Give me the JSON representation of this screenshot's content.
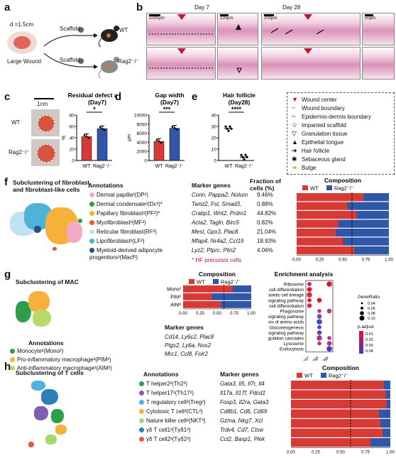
{
  "panels": {
    "a": "a",
    "b": "b",
    "c": "c",
    "d": "d",
    "e": "e",
    "f": "f",
    "g": "g",
    "h": "h"
  },
  "panel_a": {
    "diameter": "d =1.5cm",
    "wound": "Large Wound",
    "scaffold1": "Scaffold",
    "scaffold2": "Scaffold",
    "wt": "WT",
    "rag": "Rag2⁻/⁻"
  },
  "panel_b": {
    "day7": "Day 7",
    "day28": "Day 28",
    "scale1": "1000μm",
    "scale2": "100μm",
    "scale3": "200μm",
    "scale4": "50μm"
  },
  "panel_c": {
    "scale": "1cm",
    "wt": "WT",
    "rag": "Rag2⁻/⁻"
  },
  "charts": {
    "c": {
      "type": "bar",
      "title": "Residual defect area",
      "subtitle": "(Day7)",
      "ylabel": "%",
      "categories": [
        "WT",
        "Rag2⁻/⁻"
      ],
      "values": [
        42,
        56
      ],
      "yticks": [
        "0",
        "20",
        "40",
        "60",
        "80"
      ],
      "ylim": [
        0,
        80
      ],
      "sig": "*",
      "colors": [
        "#d73a35",
        "#3056a8"
      ]
    },
    "d": {
      "type": "bar",
      "title": "Gap width",
      "subtitle": "(Day7)",
      "ylabel": "μm",
      "categories": [
        "WT",
        "Rag2⁻/⁻"
      ],
      "values": [
        4200,
        7100
      ],
      "yticks": [
        "0",
        "2000",
        "4000",
        "6000",
        "8000",
        "10000"
      ],
      "ylim": [
        0,
        10000
      ],
      "sig": "***",
      "colors": [
        "#d73a35",
        "#3056a8"
      ]
    },
    "e": {
      "type": "scatter",
      "title": "Hair follicle",
      "subtitle": "(Day28)",
      "ylabel": "",
      "categories": [
        "WT",
        "Rag2⁻/⁻"
      ],
      "values": [
        28,
        3
      ],
      "yticks": [
        "0",
        "10",
        "20",
        "30",
        "40"
      ],
      "ylim": [
        0,
        40
      ],
      "sig": "****"
    }
  },
  "legend_b": [
    {
      "icon": "red-arrowhead",
      "label": "Wound center"
    },
    {
      "icon": "dotted-line",
      "label": "Wound boundary"
    },
    {
      "icon": "dashed-line",
      "label": "Epidermis-dermis boundary"
    },
    {
      "icon": "star-outline",
      "label": "Impanted scaffold"
    },
    {
      "icon": "triangle-down-outline",
      "label": "Granulation tissue"
    },
    {
      "icon": "triangle-up-filled",
      "label": "Epithelial tongue"
    },
    {
      "icon": "black-arrow",
      "label": "Hair follicle"
    },
    {
      "icon": "asterisk",
      "label": "Sebaceous gland"
    },
    {
      "icon": "orange-arrow",
      "label": "Bulge"
    }
  ],
  "panel_f": {
    "title1": "Subclustering of fibroblast",
    "title2": "and fibroblast-like cells",
    "annot_title": "Annotations",
    "marker_title": "Marker genes",
    "fraction_title1": "Fraction of",
    "fraction_title2": "cells (%)",
    "footnote": "* HF precursor cells",
    "rows": [
      {
        "name": "Dermal papilla²(DP²)",
        "markers": "Corin, Pappa2, Notum",
        "fraction": "9.46%",
        "color": "#f4a9c4"
      },
      {
        "name": "Dermal condensate²(Dc²)*",
        "markers": "Twist2, Fst, Smad3,",
        "fraction": "0.88%",
        "color": "#2e9e4a"
      },
      {
        "name": "Papillary fibroblast²(PF²)*",
        "markers": "Crabp1, Wnt2, Prdm1",
        "fraction": "44.82%",
        "color": "#f6b13a"
      },
      {
        "name": "Myofibroblast²(MF²)",
        "markers": "Acta2, Tagln, Birc5",
        "fraction": "0.82%",
        "color": "#e85a2e"
      },
      {
        "name": "Reticular fibroblast(RF²)",
        "markers": "Mest, Gpx3, Plac8",
        "fraction": "21.04%",
        "color": "#bfe3f2"
      },
      {
        "name": "Lipofibroblast²(LF²)",
        "markers": "Mfap4, Nr4a2, Ccl19",
        "fraction": "18.93%",
        "color": "#4fb2d9"
      },
      {
        "name": "Myeloid-derived adipocyte progenitors²(Macf²)",
        "markers": "Lyz2, Ptprc, Plin2",
        "fraction": "4.06%",
        "color": "#2c4f86"
      }
    ]
  },
  "composition": {
    "title": "Composition",
    "wt": "WT",
    "rag": "Rag2⁻/⁻",
    "xticks": [
      "0.00",
      "0.25",
      "0.50",
      "0.75",
      "1.00"
    ],
    "f_wt_fractions": [
      0.72,
      0.55,
      0.65,
      0.45,
      0.42,
      0.5,
      0.62
    ],
    "g_rows": [
      "Mono²",
      "PIM²",
      "AIM²"
    ],
    "g_wt_fractions": [
      0.72,
      0.42,
      0.55
    ],
    "h_wt_fractions": [
      0.93,
      0.95,
      0.96,
      0.88,
      0.9,
      0.92,
      0.8
    ]
  },
  "panel_g": {
    "title": "Subclustering of MAC",
    "annot_title": "Annotations",
    "marker_title": "Marker genes",
    "rows": [
      {
        "name": "Monocyte²(Mono²)",
        "markers": "Cd14, Ly6c2, Plac8",
        "color": "#2e9e4a"
      },
      {
        "name": "Pro-inflammatory macrophage²(PIM²)",
        "markers": "Ptgs2, Ly6a, Nos2",
        "color": "#f6b13a"
      },
      {
        "name": "Anti-inflammatory macrophage²(AIM²)",
        "markers": "Mrc1, Ccl8, Folr2",
        "color": "#b6d96a"
      }
    ]
  },
  "enrichment": {
    "title": "Enrichment analysis",
    "generatio_title": "GeneRatio",
    "padj_title": "p.adjust",
    "size_ticks": [
      "0.04",
      "0.06",
      "0.08",
      "0.10"
    ],
    "color_ticks": [
      "0.01",
      "0.02",
      "0.03",
      "0.04"
    ],
    "terms": [
      "Ribosome",
      "Th17 cell differentiation",
      "Hematopoietic cell lineage",
      "Chemokine signaling pathway",
      "Th1 and Th2 cell differentiation",
      "Phagosome",
      "HIF−1 signaling pathway",
      "Biosynthesis of amino acids",
      "Glycolysis / Gluconeogenesis",
      "TNF signaling pathway",
      "Complement and coagulation cascades",
      "Lysosome",
      "Endocytosis"
    ],
    "groups": [
      "Mono²",
      "PIM²",
      "AIM²"
    ]
  },
  "panel_h": {
    "title": "Subclustering of T cells",
    "annot_title": "Annotations",
    "marker_title": "Marker genes",
    "rows": [
      {
        "name": "T helper2²(Th2²)",
        "markers": "Gata3, Il5, Il7r, Il4",
        "color": "#2e9e4a"
      },
      {
        "name": "T helper17²(Th17²)",
        "markers": "Il17a, Il17f, Pdcd1",
        "color": "#7b5fb0"
      },
      {
        "name": "T regulatory cell²(Treg²)",
        "markers": "Foxp3, Il2ra, Gata3",
        "color": "#4fb2d9"
      },
      {
        "name": "Cytotoxic T cell²(CTL²)",
        "markers": "Cd8b1, Cd6, Cd69",
        "color": "#f6b13a"
      },
      {
        "name": "Nature killer cell²(NKT²)",
        "markers": "Gzma, Nkg7, Xcl",
        "color": "#a6d96a"
      },
      {
        "name": "γδ T cell1²(Tγδ1²)",
        "markers": "Trdv4, Cd7, Ctsw",
        "color": "#2c7fb8"
      },
      {
        "name": "γδ T cell2²(Tγδ2²)",
        "markers": "Ccl2, Basp1, Plek",
        "color": "#e8554e"
      }
    ]
  }
}
